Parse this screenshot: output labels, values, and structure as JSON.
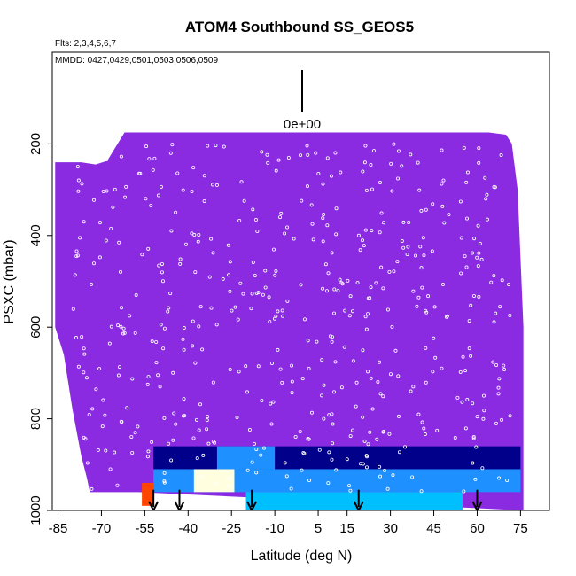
{
  "chart_data": {
    "type": "heatmap",
    "title": "ATOM4 Southbound SS_GEOS5",
    "flights_label": "Flts: 2,3,4,5,6,7",
    "dates_label": "MMDD: 0427,0429,0501,0503,0506,0509",
    "xlabel": "Latitude (deg N)",
    "ylabel": "PSXC (mbar)",
    "xlim": [
      -87,
      85
    ],
    "ylim": [
      1000,
      0
    ],
    "x_ticks": [
      -85,
      -70,
      -55,
      -40,
      -25,
      -10,
      5,
      15,
      30,
      45,
      60,
      75
    ],
    "y_ticks": [
      200,
      400,
      600,
      800,
      1000
    ],
    "legend_value_label": "0e+00",
    "background_color": "#8a2be2",
    "colors": {
      "background_field": "#8a2be2",
      "low": "#00008b",
      "mid": "#1e90ff",
      "high": "#00bfff",
      "peak": "#ffffe0",
      "max": "#ff4500",
      "points": "#ffffff",
      "arrows": "#000000"
    },
    "domain_top": [
      [
        -86,
        240
      ],
      [
        -80,
        240
      ],
      [
        -77,
        240
      ],
      [
        -72,
        245
      ],
      [
        -68,
        237
      ],
      [
        -62,
        175
      ],
      [
        -48,
        175
      ],
      [
        -38,
        175
      ],
      [
        -20,
        175
      ],
      [
        0,
        175
      ],
      [
        20,
        175
      ],
      [
        40,
        175
      ],
      [
        55,
        175
      ],
      [
        64,
        175
      ],
      [
        70,
        180
      ],
      [
        72,
        200
      ],
      [
        74,
        300
      ],
      [
        76,
        600
      ],
      [
        76,
        1000
      ]
    ],
    "domain_bottom": [
      [
        -86,
        600
      ],
      [
        -83,
        660
      ],
      [
        -80,
        780
      ],
      [
        -77,
        880
      ],
      [
        -75,
        930
      ],
      [
        -74,
        960
      ],
      [
        -59,
        960
      ],
      [
        -57,
        960
      ]
    ],
    "boundary_layer_bands": [
      {
        "lat": [
          -56,
          -52
        ],
        "p": [
          940,
          990
        ],
        "value": "max"
      },
      {
        "lat": [
          -52,
          75
        ],
        "p": [
          860,
          910
        ],
        "value": "low"
      },
      {
        "lat": [
          -30,
          -10
        ],
        "p": [
          860,
          910
        ],
        "value": "mid"
      },
      {
        "lat": [
          -52,
          75
        ],
        "p": [
          910,
          960
        ],
        "value": "mid"
      },
      {
        "lat": [
          -38,
          -24
        ],
        "p": [
          910,
          960
        ],
        "value": "peak"
      },
      {
        "lat": [
          -20,
          55
        ],
        "p": [
          960,
          1000
        ],
        "value": "high"
      }
    ],
    "profile_latitudes": [
      -52,
      -43,
      -18,
      19,
      60
    ]
  }
}
